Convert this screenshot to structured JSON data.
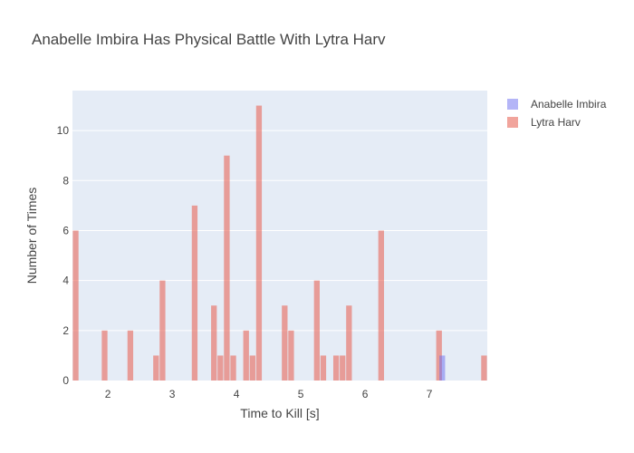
{
  "chart_data": {
    "type": "histogram",
    "title": "Anabelle Imbira Has Physical Battle With Lytra Harv",
    "xlabel": "Time to Kill [s]",
    "ylabel": "Number of Times",
    "xlim": [
      1.45,
      7.9
    ],
    "ylim": [
      0,
      11.6
    ],
    "bin_width": 0.1,
    "x_ticks": [
      2,
      3,
      4,
      5,
      6,
      7
    ],
    "y_ticks": [
      0,
      2,
      4,
      6,
      8,
      10
    ],
    "grid": true,
    "legend_position": "top-right",
    "series": [
      {
        "name": "Anabelle Imbira",
        "color": "#6a6cf0",
        "opacity": 0.5,
        "bins": [
          {
            "x": 7.2,
            "count": 1
          }
        ]
      },
      {
        "name": "Lytra Harv",
        "color": "#e8685a",
        "opacity": 0.6,
        "bins": [
          {
            "x": 1.5,
            "count": 6
          },
          {
            "x": 1.95,
            "count": 2
          },
          {
            "x": 2.35,
            "count": 2
          },
          {
            "x": 2.75,
            "count": 1
          },
          {
            "x": 2.85,
            "count": 4
          },
          {
            "x": 3.35,
            "count": 7
          },
          {
            "x": 3.65,
            "count": 3
          },
          {
            "x": 3.75,
            "count": 1
          },
          {
            "x": 3.85,
            "count": 9
          },
          {
            "x": 3.95,
            "count": 1
          },
          {
            "x": 4.15,
            "count": 2
          },
          {
            "x": 4.25,
            "count": 1
          },
          {
            "x": 4.35,
            "count": 11
          },
          {
            "x": 4.75,
            "count": 3
          },
          {
            "x": 4.85,
            "count": 2
          },
          {
            "x": 5.25,
            "count": 4
          },
          {
            "x": 5.35,
            "count": 1
          },
          {
            "x": 5.55,
            "count": 1
          },
          {
            "x": 5.65,
            "count": 1
          },
          {
            "x": 5.75,
            "count": 3
          },
          {
            "x": 6.25,
            "count": 6
          },
          {
            "x": 7.15,
            "count": 2
          },
          {
            "x": 7.85,
            "count": 1
          }
        ]
      }
    ]
  }
}
